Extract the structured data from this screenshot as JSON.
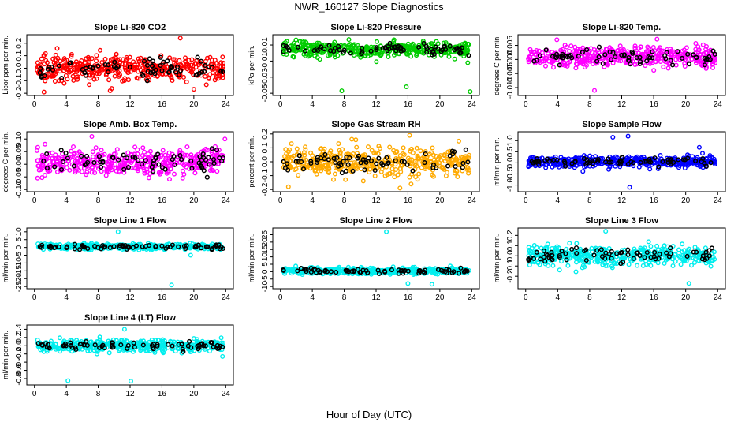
{
  "figure": {
    "title": "NWR_160127  Slope Diagnostics",
    "xlabel": "Hour of Day (UTC)",
    "ref_color": "#000000"
  },
  "chart_data": [
    {
      "type": "scatter",
      "title": "Slope Li-820 CO2",
      "ylabel": "Licor ppm per min.",
      "color": "#ff0000",
      "xlim": [
        0,
        24
      ],
      "ylim": [
        -0.2,
        0.25
      ],
      "yticks": [
        -0.2,
        -0.1,
        0.0,
        0.1,
        0.2
      ],
      "ytick_labels": [
        "-0.2",
        "-0.1",
        "0.0",
        "0.1",
        "0.2"
      ],
      "xticks": [
        0,
        4,
        8,
        12,
        16,
        20,
        24
      ],
      "xtick_labels": [
        "0",
        "4",
        "8",
        "12",
        "16",
        "20",
        "24"
      ],
      "spread": 0.08,
      "outliers": [
        [
          18.3,
          0.24
        ],
        [
          9.5,
          -0.18
        ],
        [
          1.2,
          -0.19
        ]
      ]
    },
    {
      "type": "scatter",
      "title": "Slope Li-820 Pressure",
      "ylabel": "kPa per min.",
      "color": "#00cc00",
      "xlim": [
        0,
        24
      ],
      "ylim": [
        -0.05,
        0.02
      ],
      "yticks": [
        -0.05,
        -0.03,
        -0.01,
        0.01
      ],
      "ytick_labels": [
        "-0.05",
        "-0.03",
        "-0.01",
        "0.01"
      ],
      "extra_yticks": [
        -0.04,
        -0.02,
        0.0,
        0.02
      ],
      "extra_ytick_labels": [
        "-0.04",
        "-0.02",
        "0.00",
        "0.02"
      ],
      "xticks": [
        0,
        4,
        8,
        12,
        16,
        20,
        24
      ],
      "xtick_labels": [
        "0",
        "4",
        "8",
        "12",
        "16",
        "20",
        "24"
      ],
      "center": 0.005,
      "spread": 0.008,
      "outliers": [
        [
          7.7,
          -0.047
        ],
        [
          15.8,
          -0.042
        ],
        [
          23.8,
          -0.048
        ]
      ]
    },
    {
      "type": "scatter",
      "title": "Slope Li-820 Temp.",
      "ylabel": "degrees C per min.",
      "color": "#ff00ff",
      "xlim": [
        0,
        24
      ],
      "ylim": [
        -0.012,
        0.008
      ],
      "yticks": [
        -0.01,
        -0.005,
        0.0,
        0.005
      ],
      "ytick_labels": [
        "-0.010",
        "-0.005",
        "0.000",
        "0.005"
      ],
      "xticks": [
        0,
        4,
        8,
        12,
        16,
        20,
        24
      ],
      "xtick_labels": [
        "0",
        "4",
        "8",
        "12",
        "16",
        "20",
        "24"
      ],
      "center": 0.001,
      "spread": 0.003,
      "outliers": [
        [
          8.6,
          -0.011
        ],
        [
          3.9,
          0.007
        ]
      ]
    },
    {
      "type": "scatter",
      "title": "Slope Amb. Box Temp.",
      "ylabel": "degrees C per min.",
      "color": "#ff00ff",
      "xlim": [
        0,
        24
      ],
      "ylim": [
        -0.1,
        0.12
      ],
      "yticks": [
        -0.1,
        -0.05,
        0.0,
        0.05,
        0.1
      ],
      "ytick_labels": [
        "-0.10",
        "-0.05",
        "0.00",
        "0.05",
        "0.10"
      ],
      "xticks": [
        0,
        4,
        8,
        12,
        16,
        20,
        24
      ],
      "xtick_labels": [
        "0",
        "4",
        "8",
        "12",
        "16",
        "20",
        "24"
      ],
      "center": 0.01,
      "spread": 0.045,
      "outliers": [
        [
          7.2,
          0.11
        ],
        [
          23.9,
          0.1
        ]
      ]
    },
    {
      "type": "scatter",
      "title": "Slope Gas Stream RH",
      "ylabel": "percent per min.",
      "color": "#ffaa00",
      "xlim": [
        0,
        24
      ],
      "ylim": [
        -0.2,
        0.2
      ],
      "yticks": [
        -0.2,
        -0.1,
        0.0,
        0.1,
        0.2
      ],
      "ytick_labels": [
        "-0.2",
        "-0.1",
        "0.0",
        "0.1",
        "0.2"
      ],
      "xticks": [
        0,
        4,
        8,
        12,
        16,
        20,
        24
      ],
      "xtick_labels": [
        "0",
        "4",
        "8",
        "12",
        "16",
        "20",
        "24"
      ],
      "center": 0.0,
      "spread": 0.08,
      "outliers": [
        [
          1.0,
          -0.18
        ],
        [
          15.0,
          -0.19
        ],
        [
          16.2,
          0.19
        ]
      ]
    },
    {
      "type": "scatter",
      "title": "Slope Sample Flow",
      "ylabel": "ml/min per min.",
      "color": "#0000ff",
      "xlim": [
        0,
        24
      ],
      "ylim": [
        -1.2,
        1.3
      ],
      "yticks": [
        -1.0,
        -0.5,
        0.0,
        0.5,
        1.0
      ],
      "ytick_labels": [
        "-1.0",
        "-0.5",
        "0.0",
        "0.5",
        "1.0"
      ],
      "xticks": [
        0,
        4,
        8,
        12,
        16,
        20,
        24
      ],
      "xtick_labels": [
        "0",
        "4",
        "8",
        "12",
        "16",
        "20",
        "24"
      ],
      "center": 0.05,
      "spread": 0.2,
      "outliers": [
        [
          10.9,
          1.15
        ],
        [
          12.8,
          1.2
        ],
        [
          13.0,
          -1.1
        ],
        [
          21.7,
          0.7
        ]
      ]
    },
    {
      "type": "scatter",
      "title": "Slope Line 1 Flow",
      "ylabel": "ml/min per min.",
      "color": "#00eeee",
      "xlim": [
        0,
        24
      ],
      "ylim": [
        -25,
        11
      ],
      "yticks": [
        -25,
        -20,
        -15,
        -10,
        -5,
        0,
        5,
        10
      ],
      "ytick_labels": [
        "-25",
        "-20",
        "-15",
        "-10",
        "-5",
        "0",
        "5",
        "10"
      ],
      "xticks": [
        0,
        4,
        8,
        12,
        16,
        20,
        24
      ],
      "xtick_labels": [
        "0",
        "4",
        "8",
        "12",
        "16",
        "20",
        "24"
      ],
      "center": 0.5,
      "spread": 1.5,
      "outliers": [
        [
          10.5,
          10.0
        ],
        [
          17.2,
          -24.0
        ],
        [
          19.6,
          -5.0
        ]
      ]
    },
    {
      "type": "scatter",
      "title": "Slope Line 2 Flow",
      "ylabel": "ml/min per min.",
      "color": "#00eeee",
      "xlim": [
        0,
        24
      ],
      "ylim": [
        -10,
        28
      ],
      "yticks": [
        -10,
        -5,
        0,
        5,
        10,
        15,
        20,
        25
      ],
      "ytick_labels": [
        "-10",
        "-5",
        "0",
        "5",
        "10",
        "15",
        "20",
        "25"
      ],
      "xticks": [
        0,
        4,
        8,
        12,
        16,
        20,
        24
      ],
      "xtick_labels": [
        "0",
        "4",
        "8",
        "12",
        "16",
        "20",
        "24"
      ],
      "center": 0.5,
      "spread": 1.8,
      "outliers": [
        [
          13.3,
          27.0
        ],
        [
          16.0,
          -8.0
        ],
        [
          19.0,
          -8.5
        ]
      ]
    },
    {
      "type": "scatter",
      "title": "Slope Line 3 Flow",
      "ylabel": "ml/min per min.",
      "color": "#00eeee",
      "xlim": [
        0,
        24
      ],
      "ylim": [
        -0.3,
        0.25
      ],
      "yticks": [
        -0.2,
        -0.1,
        0.0,
        0.1,
        0.2
      ],
      "ytick_labels": [
        "-0.2",
        "-0.1",
        "0.0",
        "0.1",
        "0.2"
      ],
      "xticks": [
        0,
        4,
        8,
        12,
        16,
        20,
        24
      ],
      "xtick_labels": [
        "0",
        "4",
        "8",
        "12",
        "16",
        "20",
        "24"
      ],
      "center": 0.0,
      "spread": 0.08,
      "outliers": [
        [
          10.0,
          0.24
        ],
        [
          20.4,
          -0.27
        ]
      ]
    },
    {
      "type": "scatter",
      "title": "Slope Line 4 (LT) Flow",
      "ylabel": "ml/min per min.",
      "color": "#00eeee",
      "xlim": [
        0,
        24
      ],
      "ylim": [
        -0.9,
        0.45
      ],
      "yticks": [
        -0.8,
        -0.6,
        -0.4,
        -0.2,
        0.0,
        0.2,
        0.4
      ],
      "ytick_labels": [
        "-0.8",
        "-0.6",
        "-0.4",
        "-0.2",
        "0.0",
        "0.2",
        "0.4"
      ],
      "xticks": [
        0,
        4,
        8,
        12,
        16,
        20,
        24
      ],
      "xtick_labels": [
        "0",
        "4",
        "8",
        "12",
        "16",
        "20",
        "24"
      ],
      "center": 0.0,
      "spread": 0.12,
      "outliers": [
        [
          4.2,
          -0.85
        ],
        [
          12.1,
          -0.86
        ],
        [
          11.3,
          0.4
        ]
      ]
    }
  ]
}
